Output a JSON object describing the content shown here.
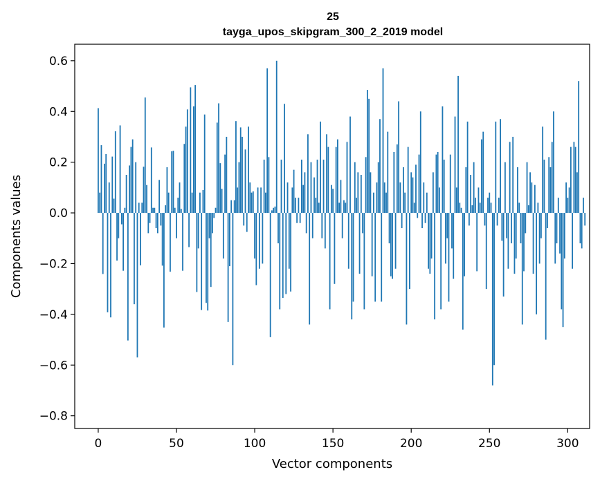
{
  "chart_data": {
    "type": "bar",
    "title_line1": "25",
    "title_line2": "tayga_upos_skipgram_300_2_2019 model",
    "xlabel": "Vector components",
    "ylabel": "Components values",
    "xlim": [
      -15,
      314
    ],
    "ylim": [
      -0.85,
      0.665
    ],
    "xticks": [
      0,
      50,
      100,
      150,
      200,
      250,
      300
    ],
    "yticks": [
      -0.8,
      -0.6,
      -0.4,
      -0.2,
      0.0,
      0.2,
      0.4,
      0.6
    ],
    "ytick_labels": [
      "−0.8",
      "−0.6",
      "−0.4",
      "−0.2",
      "0.0",
      "0.2",
      "0.4",
      "0.6"
    ],
    "xtick_labels": [
      "0",
      "50",
      "100",
      "150",
      "200",
      "250",
      "300"
    ],
    "bar_color": "#1f77b4",
    "values": [
      0.413,
      0.08,
      0.267,
      -0.241,
      0.194,
      0.232,
      -0.392,
      0.12,
      -0.412,
      0.222,
      0.056,
      0.322,
      -0.188,
      -0.1,
      0.345,
      -0.045,
      -0.228,
      0.02,
      0.15,
      -0.503,
      0.187,
      0.26,
      0.29,
      -0.36,
      0.2,
      -0.57,
      0.04,
      -0.207,
      0.04,
      0.182,
      0.455,
      0.11,
      -0.08,
      -0.04,
      0.258,
      0.02,
      0.02,
      -0.06,
      -0.08,
      0.13,
      -0.05,
      -0.208,
      -0.452,
      0.03,
      0.18,
      0.08,
      -0.232,
      0.243,
      0.245,
      0.02,
      -0.1,
      0.06,
      0.12,
      0.016,
      -0.228,
      0.272,
      0.34,
      0.408,
      -0.135,
      0.495,
      0.08,
      0.42,
      0.504,
      -0.312,
      -0.14,
      0.08,
      -0.383,
      0.09,
      0.388,
      -0.355,
      -0.385,
      -0.1,
      -0.292,
      -0.08,
      -0.02,
      0.02,
      0.356,
      0.432,
      0.196,
      0.095,
      -0.18,
      0.23,
      0.3,
      -0.43,
      -0.21,
      0.05,
      -0.6,
      0.05,
      0.362,
      0.1,
      0.2,
      0.337,
      0.3,
      -0.05,
      0.25,
      -0.075,
      0.34,
      0.12,
      0.08,
      0.085,
      -0.18,
      -0.285,
      0.1,
      -0.22,
      0.1,
      -0.2,
      0.21,
      0.08,
      0.57,
      0.22,
      -0.49,
      0.01,
      0.02,
      0.025,
      0.6,
      -0.12,
      -0.38,
      0.21,
      -0.335,
      0.43,
      -0.32,
      0.12,
      -0.22,
      -0.31,
      0.1,
      0.17,
      0.06,
      -0.04,
      0.06,
      -0.04,
      0.21,
      0.11,
      0.16,
      -0.08,
      0.31,
      -0.44,
      0.2,
      -0.1,
      0.14,
      0.06,
      0.21,
      0.04,
      0.36,
      -0.1,
      0.21,
      -0.14,
      0.31,
      0.26,
      -0.38,
      0.11,
      0.095,
      -0.28,
      0.26,
      0.29,
      0.04,
      0.13,
      -0.1,
      0.05,
      0.04,
      0.28,
      -0.22,
      0.38,
      -0.42,
      -0.35,
      0.2,
      0.06,
      0.16,
      -0.24,
      0.15,
      -0.08,
      -0.38,
      0.22,
      0.485,
      0.45,
      0.16,
      -0.25,
      0.08,
      -0.35,
      0.12,
      0.2,
      0.37,
      -0.35,
      0.57,
      0.12,
      0.08,
      0.32,
      -0.12,
      -0.25,
      -0.26,
      0.24,
      -0.22,
      0.27,
      0.44,
      0.12,
      -0.06,
      0.18,
      0.08,
      -0.44,
      0.26,
      -0.3,
      0.16,
      0.14,
      0.04,
      0.19,
      -0.02,
      0.23,
      0.4,
      -0.06,
      0.12,
      -0.04,
      0.08,
      -0.22,
      -0.24,
      -0.18,
      0.16,
      -0.42,
      0.23,
      0.24,
      0.1,
      -0.38,
      0.42,
      0.21,
      -0.2,
      -0.1,
      -0.35,
      0.23,
      -0.14,
      -0.26,
      0.38,
      0.1,
      0.54,
      0.04,
      0.02,
      -0.46,
      -0.25,
      0.18,
      0.36,
      -0.05,
      0.15,
      0.03,
      0.2,
      0.06,
      -0.23,
      0.1,
      0.04,
      0.29,
      0.32,
      -0.05,
      -0.3,
      0.06,
      0.08,
      0.04,
      -0.68,
      -0.6,
      0.36,
      -0.05,
      0.06,
      0.37,
      -0.11,
      -0.33,
      0.2,
      -0.1,
      -0.22,
      0.28,
      -0.12,
      0.3,
      -0.24,
      -0.18,
      0.18,
      0.04,
      -0.12,
      -0.44,
      -0.23,
      -0.08,
      0.2,
      0.03,
      0.16,
      0.12,
      -0.24,
      0.11,
      -0.4,
      0.04,
      -0.2,
      -0.1,
      0.34,
      0.21,
      -0.5,
      -0.06,
      0.22,
      0.18,
      0.28,
      0.4,
      -0.2,
      -0.12,
      0.06,
      -0.16,
      -0.38,
      -0.45,
      -0.18,
      0.12,
      0.06,
      0.1,
      0.26,
      -0.22,
      0.28,
      0.26,
      0.16,
      0.52,
      -0.12,
      -0.14,
      0.06,
      -0.05
    ]
  }
}
